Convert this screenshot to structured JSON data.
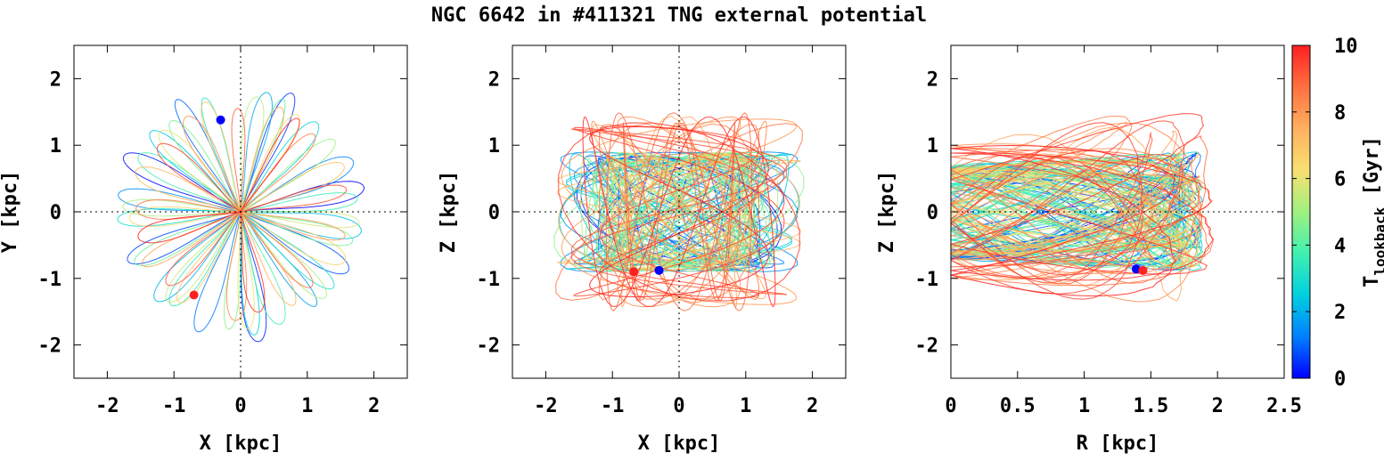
{
  "figure": {
    "title": "NGC 6642 in #411321 TNG external potential"
  },
  "colorbar": {
    "label_main": "T",
    "label_sub": "lookback",
    "label_unit": " [Gyr]",
    "range": [
      0,
      10
    ],
    "ticks": [
      "0",
      "2",
      "4",
      "6",
      "8",
      "10"
    ],
    "colormap": [
      "#0000ff",
      "#0080ff",
      "#00d0e0",
      "#40f0b0",
      "#a0f080",
      "#f8e070",
      "#ffb060",
      "#ff7040",
      "#ff2020"
    ]
  },
  "chart_data": [
    {
      "type": "scatter",
      "xlabel": "X [kpc]",
      "ylabel": "Y [kpc]",
      "xlim": [
        -2.5,
        2.5
      ],
      "ylim": [
        -2.5,
        2.5
      ],
      "xticks": [
        "-2",
        "-1",
        "0",
        "1",
        "2"
      ],
      "yticks": [
        "-2",
        "-1",
        "0",
        "1",
        "2"
      ],
      "orbit_extent": {
        "r_max_kpc": 2.0
      },
      "markers": [
        {
          "name": "blue",
          "x": -0.3,
          "y": 1.38,
          "color": "#0000ff"
        },
        {
          "name": "red",
          "x": -0.7,
          "y": -1.25,
          "color": "#ff2020"
        }
      ]
    },
    {
      "type": "scatter",
      "xlabel": "X [kpc]",
      "ylabel": "Z [kpc]",
      "xlim": [
        -2.5,
        2.5
      ],
      "ylim": [
        -2.5,
        2.5
      ],
      "xticks": [
        "-2",
        "-1",
        "0",
        "1",
        "2"
      ],
      "yticks": [
        "-2",
        "-1",
        "0",
        "1",
        "2"
      ],
      "orbit_extent": {
        "x_max_kpc": 1.9,
        "z_max_kpc": 1.5
      },
      "markers": [
        {
          "name": "red",
          "x": -0.68,
          "y": -0.9,
          "color": "#ff2020"
        },
        {
          "name": "blue",
          "x": -0.3,
          "y": -0.88,
          "color": "#0000ff"
        }
      ]
    },
    {
      "type": "scatter",
      "xlabel": "R [kpc]",
      "ylabel": "Z [kpc]",
      "xlim": [
        0,
        2.5
      ],
      "ylim": [
        -2.5,
        2.5
      ],
      "xticks": [
        "0",
        "0.5",
        "1",
        "1.5",
        "2",
        "2.5"
      ],
      "yticks": [
        "-2",
        "-1",
        "0",
        "1",
        "2"
      ],
      "orbit_extent": {
        "r_max_kpc": 2.1,
        "z_max_kpc": 1.5
      },
      "markers": [
        {
          "name": "blue",
          "x": 1.39,
          "y": -0.86,
          "color": "#0000ff"
        },
        {
          "name": "red",
          "x": 1.44,
          "y": -0.88,
          "color": "#ff2020"
        }
      ]
    }
  ]
}
